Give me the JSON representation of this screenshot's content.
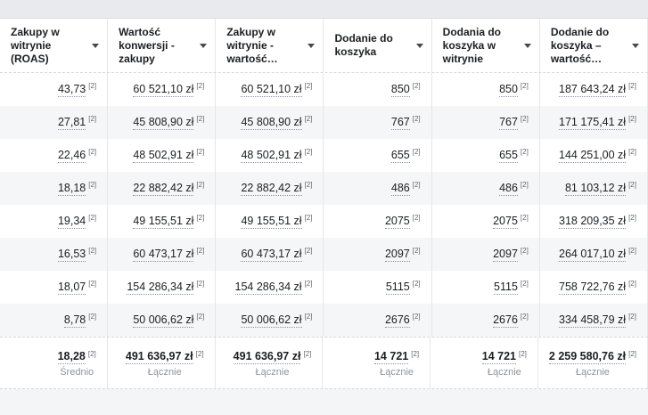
{
  "table": {
    "footnote_marker": "[2]",
    "columns": [
      {
        "label": "Zakupy w\nwitrynie (ROAS)"
      },
      {
        "label": "Wartość\nkonwersji -\nzakupy"
      },
      {
        "label": "Zakupy w\nwitrynie -\nwartość…"
      },
      {
        "label": "Dodanie do\nkoszyka"
      },
      {
        "label": "Dodania do\nkoszyka w\nwitrynie"
      },
      {
        "label": "Dodanie do\nkoszyka –\nwartość…"
      }
    ],
    "rows": [
      [
        "43,73",
        "60 521,10 zł",
        "60 521,10 zł",
        "850",
        "850",
        "187 643,24 zł"
      ],
      [
        "27,81",
        "45 808,90 zł",
        "45 808,90 zł",
        "767",
        "767",
        "171 175,41 zł"
      ],
      [
        "22,46",
        "48 502,91 zł",
        "48 502,91 zł",
        "655",
        "655",
        "144 251,00 zł"
      ],
      [
        "18,18",
        "22 882,42 zł",
        "22 882,42 zł",
        "486",
        "486",
        "81 103,12 zł"
      ],
      [
        "19,34",
        "49 155,51 zł",
        "49 155,51 zł",
        "2075",
        "2075",
        "318 209,35 zł"
      ],
      [
        "16,53",
        "60 473,17 zł",
        "60 473,17 zł",
        "2097",
        "2097",
        "264 017,10 zł"
      ],
      [
        "18,07",
        "154 286,34 zł",
        "154 286,34 zł",
        "5115",
        "5115",
        "758 722,76 zł"
      ],
      [
        "8,78",
        "50 006,62 zł",
        "50 006,62 zł",
        "2676",
        "2676",
        "334 458,79 zł"
      ]
    ],
    "summary": {
      "values": [
        "18,28",
        "491 636,97 zł",
        "491 636,97 zł",
        "14 721",
        "14 721",
        "2 259 580,76 zł"
      ],
      "labels": [
        "Średnio",
        "Łącznie",
        "Łącznie",
        "Łącznie",
        "Łącznie",
        "Łącznie"
      ]
    }
  },
  "colors": {
    "page_background": "#e8eaed",
    "row_alt_background": "#f5f6f7",
    "column_border": "#e4e6e9",
    "text": "#1c1e21",
    "muted_label": "#8d949e"
  }
}
